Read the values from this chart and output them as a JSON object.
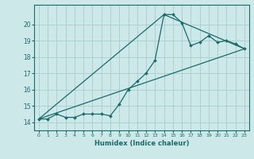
{
  "xlabel": "Humidex (Indice chaleur)",
  "xlim": [
    -0.5,
    23.5
  ],
  "ylim": [
    13.5,
    21.2
  ],
  "yticks": [
    14,
    15,
    16,
    17,
    18,
    19,
    20
  ],
  "xticks": [
    0,
    1,
    2,
    3,
    4,
    5,
    6,
    7,
    8,
    9,
    10,
    11,
    12,
    13,
    14,
    15,
    16,
    17,
    18,
    19,
    20,
    21,
    22,
    23
  ],
  "bg_color": "#cce8e8",
  "line_color": "#1a6b6b",
  "grid_color": "#aacccc",
  "line1_x": [
    0,
    1,
    2,
    3,
    4,
    5,
    6,
    7,
    8,
    9,
    10,
    11,
    12,
    13,
    14,
    15,
    16,
    17,
    18,
    19,
    20,
    21,
    22,
    23
  ],
  "line1_y": [
    14.2,
    14.2,
    14.5,
    14.3,
    14.3,
    14.5,
    14.5,
    14.5,
    14.4,
    15.1,
    16.0,
    16.5,
    17.0,
    17.8,
    20.6,
    20.6,
    20.1,
    18.7,
    18.9,
    19.3,
    18.9,
    19.0,
    18.8,
    18.5
  ],
  "line2_x": [
    0,
    23
  ],
  "line2_y": [
    14.2,
    18.5
  ],
  "line3_x": [
    0,
    14,
    23
  ],
  "line3_y": [
    14.2,
    20.6,
    18.5
  ]
}
